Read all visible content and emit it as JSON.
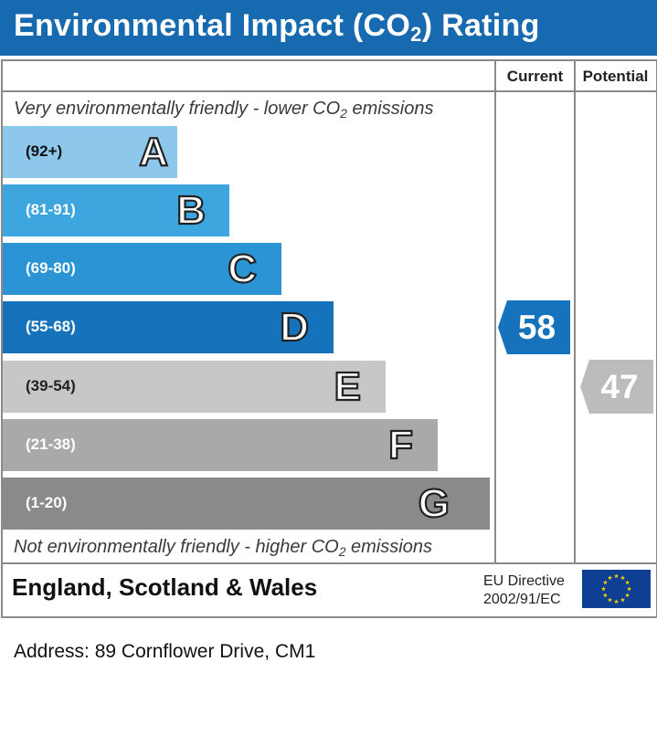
{
  "header": {
    "title_prefix": "Environmental Impact (CO",
    "title_sub": "2",
    "title_suffix": ") Rating"
  },
  "columns": {
    "current": "Current",
    "potential": "Potential"
  },
  "notes": {
    "top_prefix": "Very environmentally friendly - lower CO",
    "top_sub": "2",
    "top_suffix": " emissions",
    "bottom_prefix": "Not environmentally friendly - higher CO",
    "bottom_sub": "2",
    "bottom_suffix": " emissions"
  },
  "chart_data": {
    "type": "bar",
    "categories": [
      "A",
      "B",
      "C",
      "D",
      "E",
      "F",
      "G"
    ],
    "ranges": [
      "(92+)",
      "(81-91)",
      "(69-80)",
      "(55-68)",
      "(39-54)",
      "(21-38)",
      "(1-20)"
    ],
    "current": 58,
    "potential": 47
  },
  "colors": {
    "bands": [
      "#8dc8ec",
      "#3ea6df",
      "#2a94d4",
      "#1673bb",
      "#c7c7c7",
      "#a9a9a9",
      "#8a8a8a"
    ],
    "range_text": [
      "#111111",
      "#ffffff",
      "#ffffff",
      "#ffffff",
      "#222222",
      "#ffffff",
      "#ffffff"
    ],
    "current_arrow": "#1673bb",
    "potential_arrow": "#bcbcbc"
  },
  "footer": {
    "region": "England, Scotland & Wales",
    "directive_line1": "EU Directive",
    "directive_line2": "2002/91/EC"
  },
  "address": "Address: 89 Cornflower Drive, CM1"
}
